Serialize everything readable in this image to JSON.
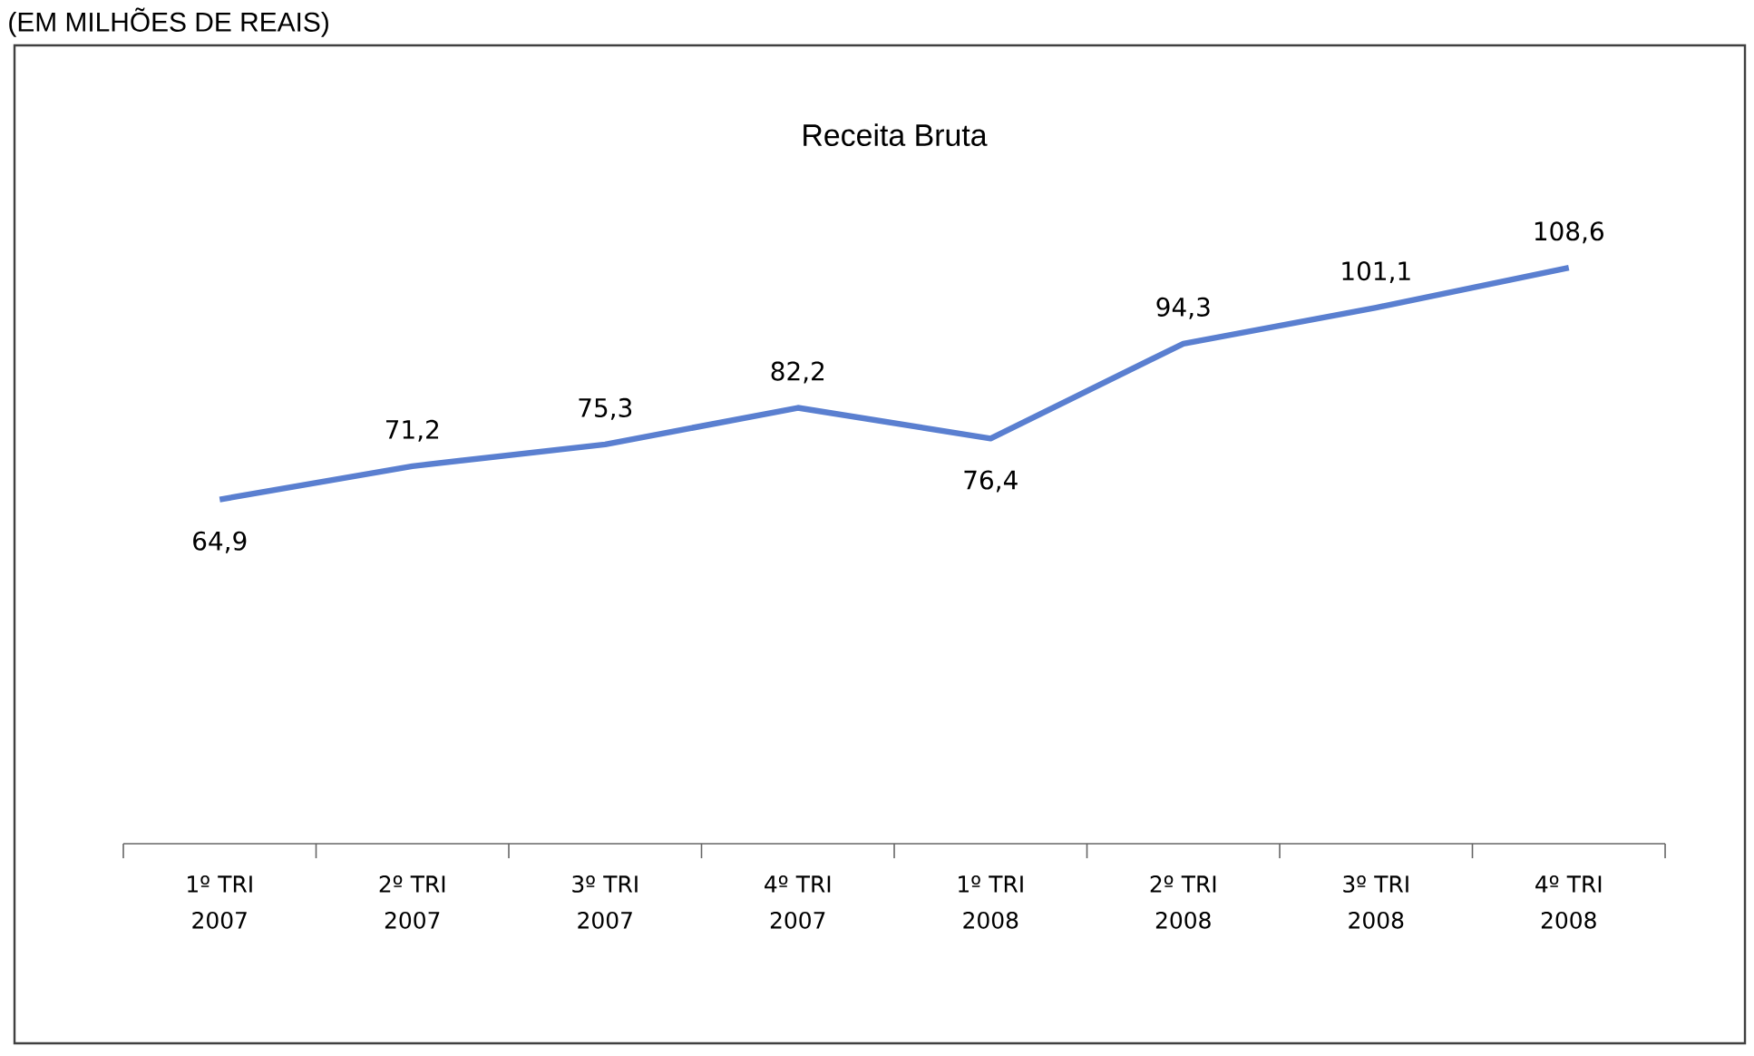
{
  "chart_data": {
    "type": "line",
    "title": "Receita Bruta",
    "annotations": [
      "(EM MILHÕES DE REAIS)"
    ],
    "categories": [
      "1º TRI 2007",
      "2º TRI 2007",
      "3º TRI 2007",
      "4º TRI 2007",
      "1º TRI 2008",
      "2º TRI 2008",
      "3º TRI 2008",
      "4º TRI 2008"
    ],
    "values": [
      64.9,
      71.2,
      75.3,
      82.2,
      76.4,
      94.3,
      101.1,
      108.6
    ],
    "value_labels": [
      "64,9",
      "71,2",
      "75,3",
      "82,2",
      "76,4",
      "94,3",
      "101,1",
      "108,6"
    ],
    "color": "#5a7fd0"
  }
}
